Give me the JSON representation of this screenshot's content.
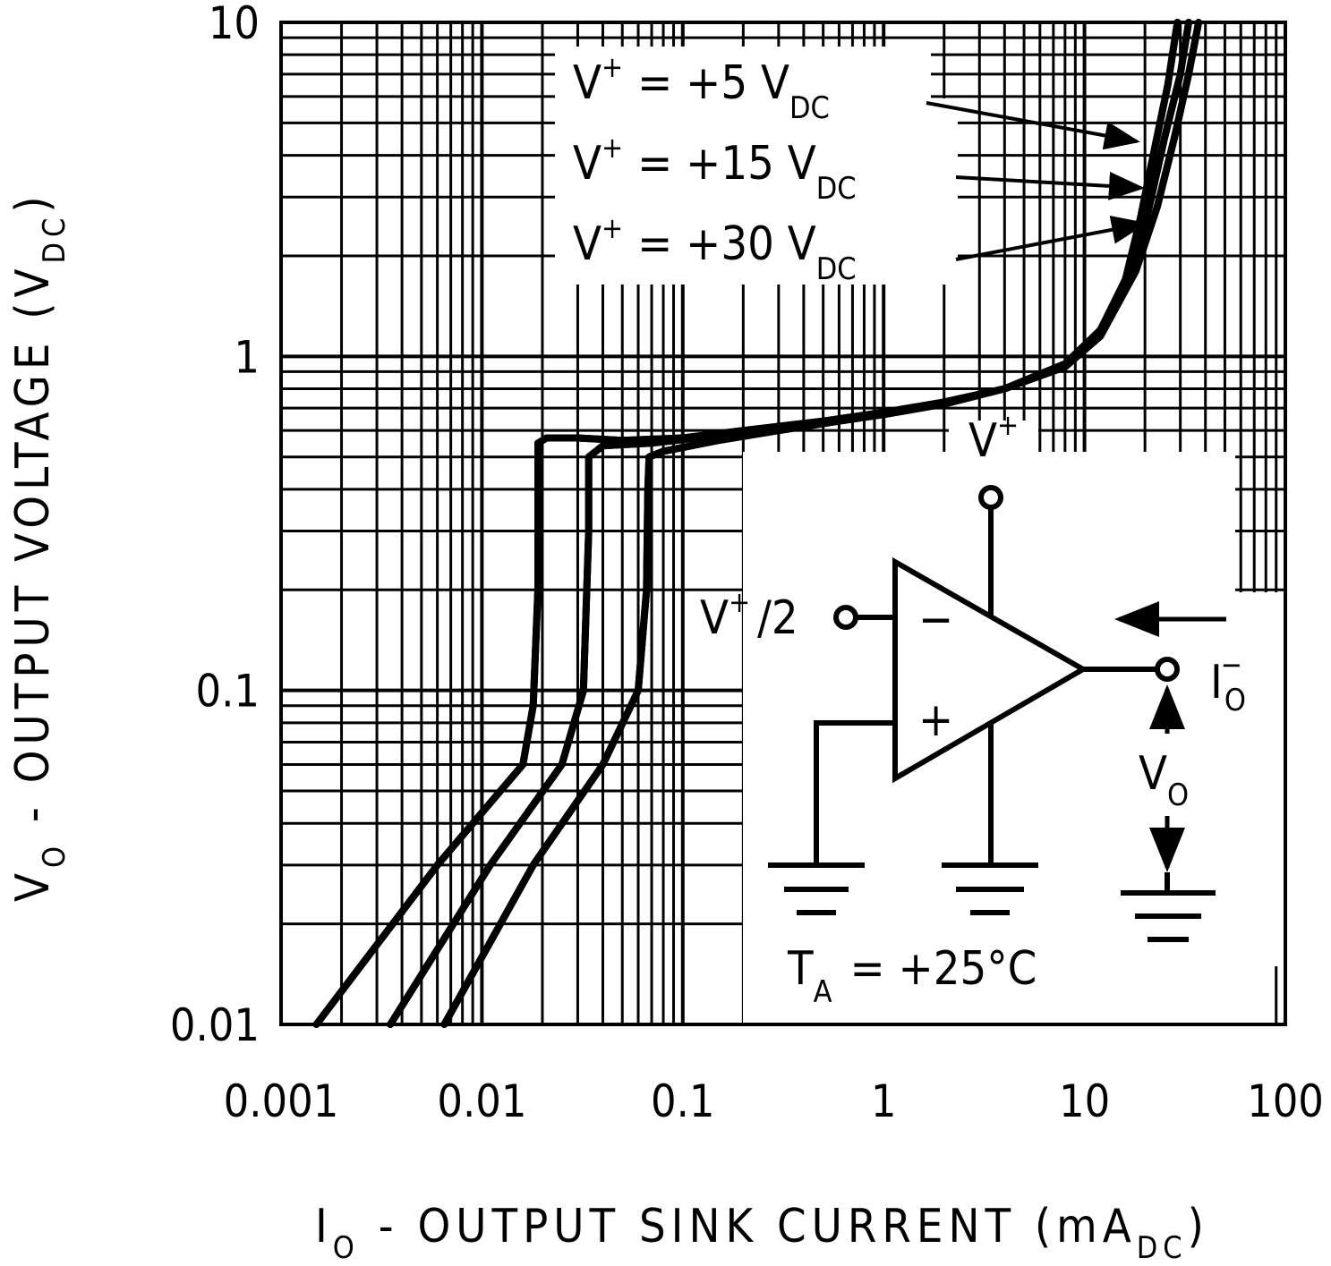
{
  "chart_data": {
    "type": "line",
    "xscale": "log",
    "yscale": "log",
    "xlim": [
      0.001,
      100
    ],
    "ylim": [
      0.01,
      10
    ],
    "grid": true,
    "xlabel": {
      "main": "I",
      "sub": "O",
      "rest": " - OUTPUT SINK CURRENT (mA",
      "unit_sub": "DC",
      "end": ")"
    },
    "ylabel": {
      "main": "V",
      "sub": "O",
      "rest": " - OUTPUT VOLTAGE (V",
      "unit_sub": "DC",
      "end": ")"
    },
    "xticks": [
      "0.001",
      "0.01",
      "0.1",
      "1",
      "10",
      "100"
    ],
    "yticks": [
      "0.01",
      "0.1",
      "1",
      "10"
    ],
    "series": [
      {
        "name": "V+ = +5 VDC",
        "label": {
          "v": "V",
          "sup": "+",
          "eq": "=  +5 V",
          "sub": "DC"
        },
        "points": [
          [
            0.0015,
            0.01
          ],
          [
            0.006,
            0.03
          ],
          [
            0.016,
            0.06
          ],
          [
            0.018,
            0.09
          ],
          [
            0.019,
            0.2
          ],
          [
            0.019,
            0.45
          ],
          [
            0.019,
            0.55
          ],
          [
            0.021,
            0.57
          ],
          [
            0.03,
            0.57
          ],
          [
            0.05,
            0.56
          ],
          [
            0.1,
            0.57
          ],
          [
            0.2,
            0.6
          ],
          [
            0.5,
            0.64
          ],
          [
            1,
            0.68
          ],
          [
            2,
            0.73
          ],
          [
            4,
            0.8
          ],
          [
            8,
            0.95
          ],
          [
            12,
            1.2
          ],
          [
            16,
            1.7
          ],
          [
            19,
            2.6
          ],
          [
            22,
            4
          ],
          [
            26,
            6.5
          ],
          [
            29,
            10
          ]
        ]
      },
      {
        "name": "V+ = +15 VDC",
        "label": {
          "v": "V",
          "sup": "+",
          "eq": "=  +15 V",
          "sub": "DC"
        },
        "points": [
          [
            0.0035,
            0.01
          ],
          [
            0.011,
            0.03
          ],
          [
            0.025,
            0.06
          ],
          [
            0.032,
            0.1
          ],
          [
            0.034,
            0.3
          ],
          [
            0.034,
            0.42
          ],
          [
            0.034,
            0.5
          ],
          [
            0.04,
            0.54
          ],
          [
            0.07,
            0.55
          ],
          [
            0.15,
            0.58
          ],
          [
            0.3,
            0.61
          ],
          [
            0.6,
            0.65
          ],
          [
            1,
            0.68
          ],
          [
            2,
            0.73
          ],
          [
            4,
            0.8
          ],
          [
            8,
            0.94
          ],
          [
            12,
            1.2
          ],
          [
            17,
            1.8
          ],
          [
            21,
            2.8
          ],
          [
            25,
            4.5
          ],
          [
            30,
            7
          ],
          [
            33,
            10
          ]
        ]
      },
      {
        "name": "V+ = +30 VDC",
        "label": {
          "v": "V",
          "sup": "+",
          "eq": "=  +30 V",
          "sub": "DC"
        },
        "points": [
          [
            0.0065,
            0.01
          ],
          [
            0.018,
            0.03
          ],
          [
            0.04,
            0.06
          ],
          [
            0.06,
            0.1
          ],
          [
            0.066,
            0.2
          ],
          [
            0.067,
            0.4
          ],
          [
            0.068,
            0.5
          ],
          [
            0.08,
            0.52
          ],
          [
            0.15,
            0.56
          ],
          [
            0.3,
            0.6
          ],
          [
            0.6,
            0.64
          ],
          [
            1,
            0.67
          ],
          [
            2,
            0.72
          ],
          [
            4,
            0.8
          ],
          [
            8,
            0.93
          ],
          [
            12,
            1.15
          ],
          [
            18,
            1.8
          ],
          [
            23,
            2.8
          ],
          [
            28,
            4.5
          ],
          [
            33,
            7
          ],
          [
            37,
            10
          ]
        ]
      }
    ],
    "inset": {
      "supply_label": {
        "v": "V",
        "sup": "+"
      },
      "input_label": {
        "v": "V",
        "sup": "+",
        "rest": "/2"
      },
      "minus": "−",
      "plus": "+",
      "current_label": {
        "main": "I",
        "sup": "−",
        "sub": "O"
      },
      "vout_label": {
        "main": "V",
        "sub": "O"
      },
      "temp_label": {
        "main": "T",
        "sub": "A",
        "rest": "=  +25°C"
      }
    }
  }
}
